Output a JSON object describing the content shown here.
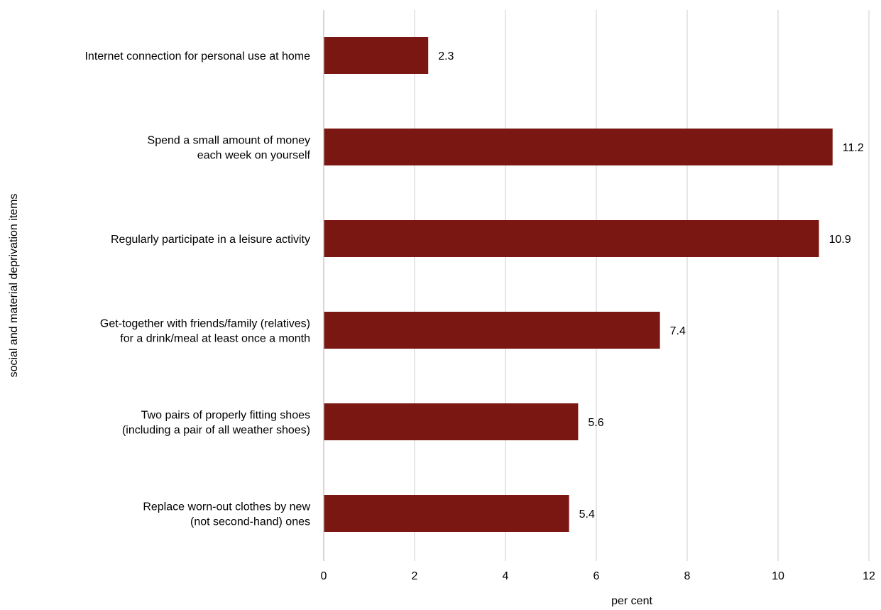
{
  "chart_data": {
    "type": "bar",
    "orientation": "horizontal",
    "categories": [
      [
        "Internet connection for personal use at home"
      ],
      [
        "Spend a small amount of money",
        "each week on yourself"
      ],
      [
        "Regularly participate in a leisure activity"
      ],
      [
        "Get-together with friends/family (relatives)",
        "for a drink/meal at least once a month"
      ],
      [
        "Two pairs of properly fitting shoes",
        "(including a pair of all weather shoes)"
      ],
      [
        "Replace worn-out clothes by new",
        "(not second-hand) ones"
      ]
    ],
    "values": [
      2.3,
      11.2,
      10.9,
      7.4,
      5.6,
      5.4
    ],
    "value_labels": [
      "2.3",
      "11.2",
      "10.9",
      "7.4",
      "5.6",
      "5.4"
    ],
    "xlabel": "per cent",
    "ylabel": "social and material deprivation items",
    "xlim": [
      0,
      12
    ],
    "xticks": [
      0,
      2,
      4,
      6,
      8,
      10,
      12
    ],
    "xtick_labels": [
      "0",
      "2",
      "4",
      "6",
      "8",
      "10",
      "12"
    ],
    "grid": "vertical",
    "legend": "none",
    "colors": {
      "bar": "#7b1712",
      "grid": "#d9d9d9",
      "axis": "#bfbfbf"
    }
  }
}
